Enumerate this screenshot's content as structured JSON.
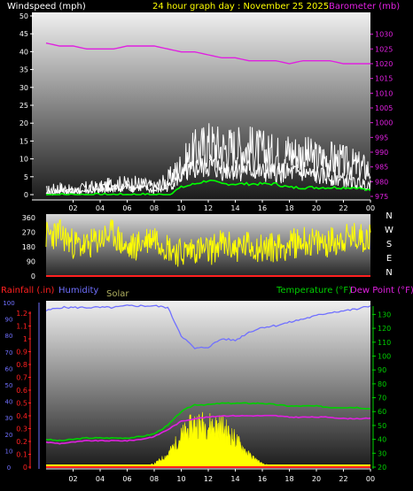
{
  "header": {
    "windspeed_label": "Windspeed (mph)",
    "title": "24 hour graph day : November 25 2025",
    "barometer_label": "Barometer (mb)"
  },
  "colors": {
    "wind": "#ffffff",
    "gust": "#ffffff",
    "wind_avg": "#00ff00",
    "barometer": "#e020e0",
    "direction": "#ffff00",
    "rain": "#ff2020",
    "humidity": "#7070ff",
    "solar": "#ffff00",
    "temperature": "#00d000",
    "dewpoint": "#e020e0"
  },
  "chart_data": [
    {
      "type": "line",
      "name": "wind-barometer",
      "ylabel": "Windspeed (mph)",
      "y2label": "Barometer (mb)",
      "ylim": [
        0,
        50
      ],
      "y2lim": [
        975,
        1035
      ],
      "y_ticks": [
        "0",
        "5",
        "10",
        "15",
        "20",
        "25",
        "30",
        "35",
        "40",
        "45",
        "50"
      ],
      "y2_ticks": [
        "975",
        "980",
        "985",
        "990",
        "995",
        "1000",
        "1005",
        "1010",
        "1015",
        "1020",
        "1025",
        "1030"
      ],
      "x_ticks": [
        "02",
        "04",
        "06",
        "08",
        "10",
        "12",
        "14",
        "16",
        "18",
        "20",
        "22",
        "00"
      ],
      "x": [
        0,
        1,
        2,
        3,
        4,
        5,
        6,
        7,
        8,
        9,
        10,
        11,
        12,
        13,
        14,
        15,
        16,
        17,
        18,
        19,
        20,
        21,
        22,
        23,
        24
      ],
      "series": [
        {
          "key": "gust",
          "values": [
            1,
            2,
            1,
            2,
            2,
            3,
            3,
            3,
            2,
            4,
            8,
            12,
            14,
            13,
            13,
            13,
            12,
            11,
            12,
            11,
            10,
            10,
            9,
            8,
            7
          ]
        },
        {
          "key": "wind",
          "values": [
            0,
            1,
            1,
            1,
            1,
            2,
            2,
            2,
            1,
            2,
            5,
            7,
            8,
            7,
            7,
            7,
            6,
            6,
            6,
            6,
            5,
            5,
            4,
            3,
            3
          ]
        },
        {
          "key": "wind_avg",
          "values": [
            0,
            0,
            0,
            0,
            0,
            0,
            0,
            0,
            0,
            0,
            2,
            3,
            4,
            3,
            3,
            3,
            3,
            3,
            2,
            2,
            2,
            2,
            2,
            2,
            1
          ]
        },
        {
          "key": "barometer",
          "values": [
            1027,
            1026,
            1026,
            1025,
            1025,
            1025,
            1026,
            1026,
            1026,
            1025,
            1024,
            1024,
            1023,
            1022,
            1022,
            1021,
            1021,
            1021,
            1020,
            1021,
            1021,
            1021,
            1020,
            1020,
            1020
          ]
        }
      ]
    },
    {
      "type": "line",
      "name": "wind-direction",
      "ylim": [
        0,
        360
      ],
      "y_ticks": [
        "0",
        "90",
        "180",
        "270",
        "360"
      ],
      "compass": [
        "N",
        "W",
        "S",
        "E",
        "N"
      ],
      "x": [
        0,
        1,
        2,
        3,
        4,
        5,
        6,
        7,
        8,
        9,
        10,
        11,
        12,
        13,
        14,
        15,
        16,
        17,
        18,
        19,
        20,
        21,
        22,
        23,
        24
      ],
      "series": [
        {
          "key": "direction",
          "values": [
            250,
            260,
            200,
            180,
            230,
            260,
            160,
            200,
            250,
            180,
            140,
            170,
            150,
            200,
            170,
            190,
            170,
            180,
            190,
            220,
            200,
            210,
            230,
            240,
            240
          ]
        }
      ]
    },
    {
      "type": "line",
      "name": "rain-humidity-temp",
      "left_labels": {
        "rainfall": "Rainfall (.in)",
        "humidity": "Humidity",
        "solar": "Solar"
      },
      "right_labels": {
        "temperature": "Temperature (°F)",
        "dewpoint": "Dew Point (°F)"
      },
      "rain_ticks": [
        "0",
        "0.1",
        "0.2",
        "0.3",
        "0.4",
        "0.5",
        "0.6",
        "0.7",
        "0.8",
        "0.9",
        "1",
        "1.1",
        "1.2"
      ],
      "humidity_ticks": [
        "0",
        "10",
        "20",
        "30",
        "40",
        "50",
        "60",
        "70",
        "80",
        "90",
        "100"
      ],
      "temp_ticks": [
        "20",
        "30",
        "40",
        "50",
        "60",
        "70",
        "80",
        "90",
        "100",
        "110",
        "120",
        "130"
      ],
      "temp_lim": [
        20,
        136
      ],
      "humidity_lim": [
        0,
        100
      ],
      "x_ticks": [
        "02",
        "04",
        "06",
        "08",
        "10",
        "12",
        "14",
        "16",
        "18",
        "20",
        "22",
        "00"
      ],
      "x": [
        0,
        1,
        2,
        3,
        4,
        5,
        6,
        7,
        8,
        9,
        10,
        11,
        12,
        13,
        14,
        15,
        16,
        17,
        18,
        19,
        20,
        21,
        22,
        23,
        24
      ],
      "series": [
        {
          "key": "humidity",
          "values": [
            95,
            97,
            97,
            97,
            97,
            97,
            98,
            98,
            98,
            97,
            80,
            72,
            73,
            78,
            77,
            82,
            85,
            86,
            88,
            90,
            92,
            94,
            95,
            96,
            98
          ]
        },
        {
          "key": "temperature",
          "values": [
            40,
            39,
            40,
            41,
            41,
            41,
            41,
            42,
            44,
            50,
            60,
            65,
            65,
            66,
            66,
            66,
            66,
            65,
            64,
            64,
            64,
            63,
            63,
            63,
            62
          ]
        },
        {
          "key": "dewpoint",
          "values": [
            38,
            37,
            38,
            39,
            39,
            39,
            39,
            40,
            42,
            47,
            53,
            55,
            56,
            57,
            57,
            57,
            57,
            57,
            56,
            56,
            56,
            56,
            55,
            55,
            55
          ]
        },
        {
          "key": "solar",
          "values": [
            0,
            0,
            0,
            0,
            0,
            0,
            0,
            0,
            2,
            8,
            20,
            28,
            27,
            26,
            18,
            8,
            2,
            0,
            0,
            0,
            0,
            0,
            0,
            0,
            0
          ]
        },
        {
          "key": "rain",
          "values": [
            0,
            0,
            0,
            0,
            0,
            0,
            0,
            0,
            0,
            0,
            0,
            0,
            0,
            0,
            0,
            0,
            0,
            0,
            0,
            0,
            0,
            0,
            0,
            0,
            0
          ]
        }
      ]
    }
  ]
}
